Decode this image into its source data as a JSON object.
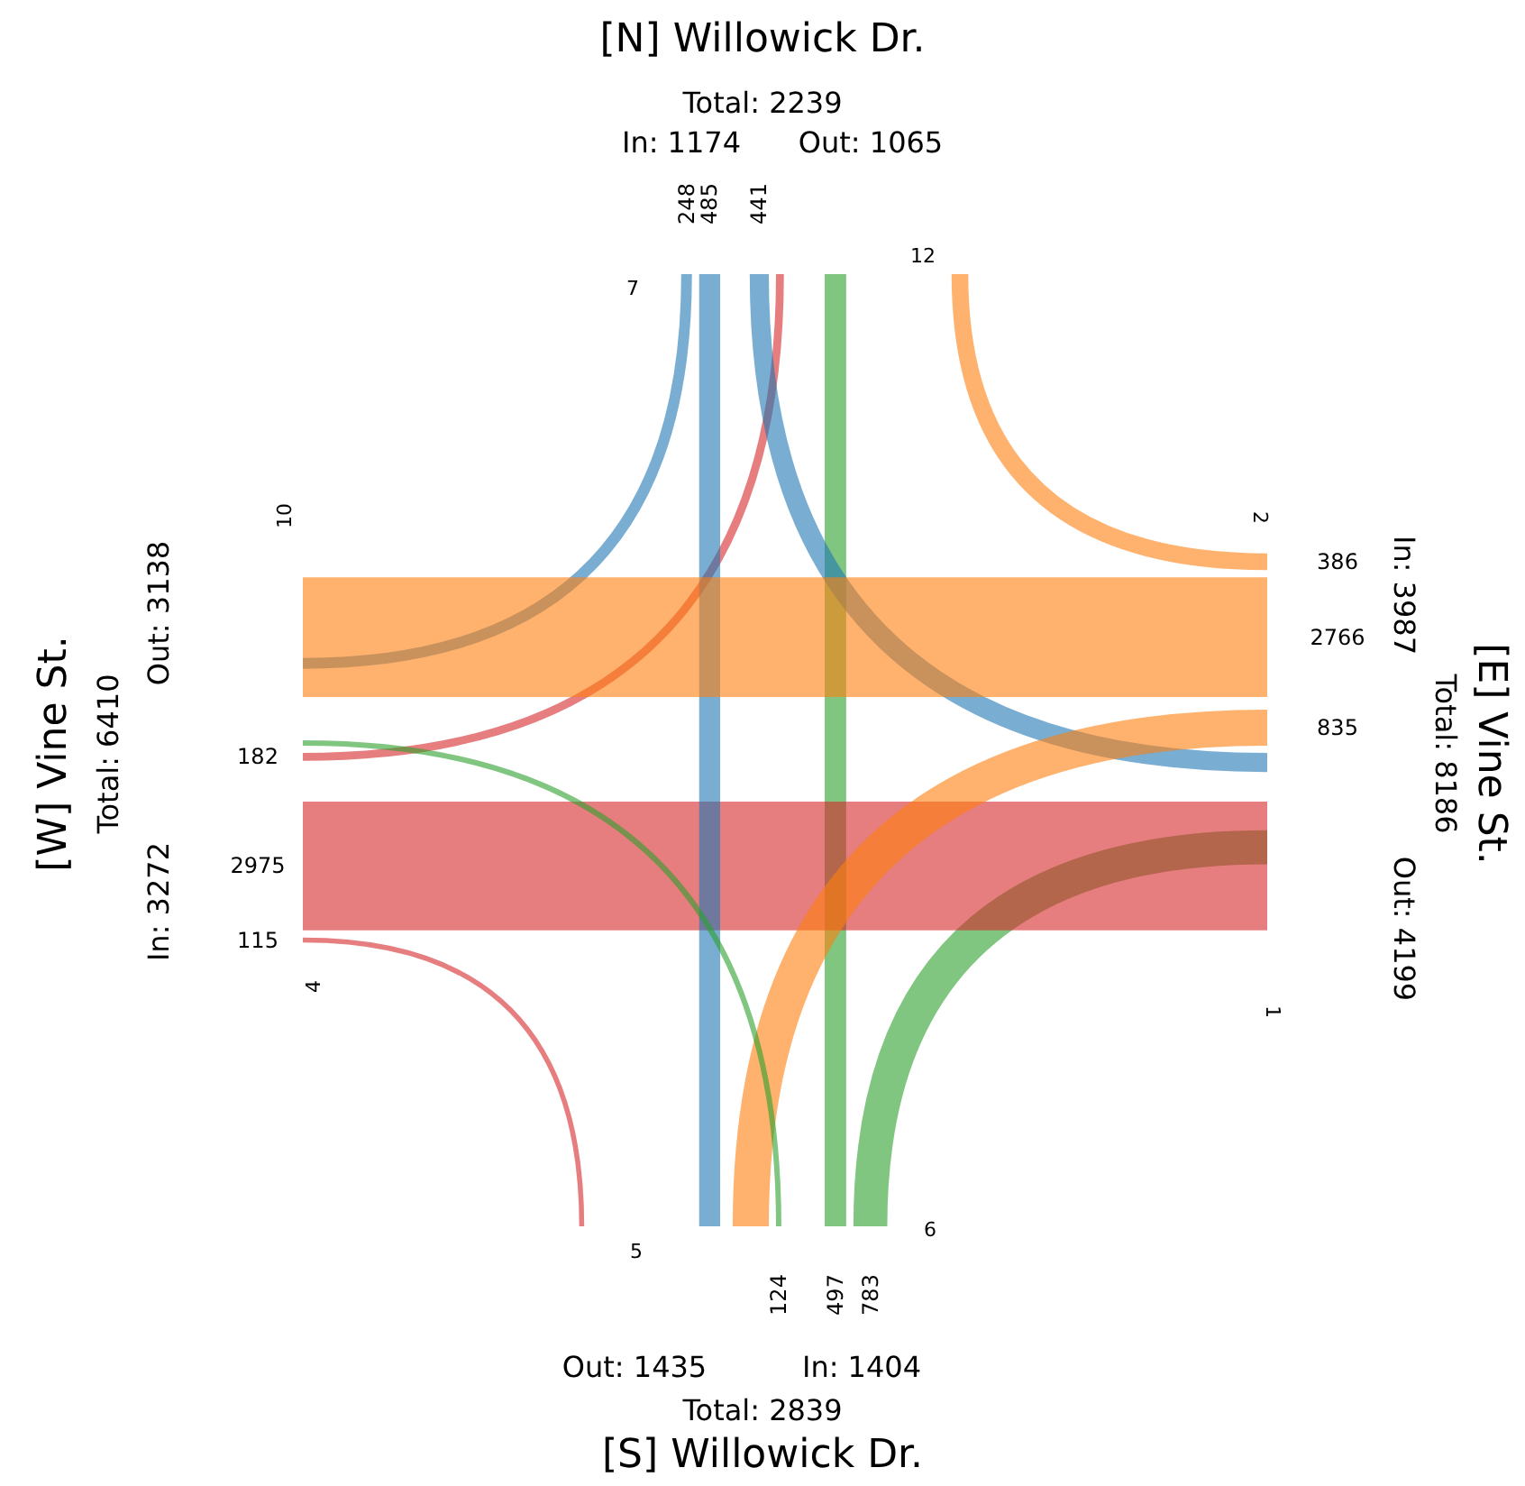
{
  "chart_data": {
    "type": "other",
    "categories": [
      "[N] Willowick Dr.",
      "[E] Vine St.",
      "[S] Willowick Dr.",
      "[W] Vine St."
    ],
    "series": [
      {
        "colors": [
          null,
          "#ff7f0e",
          "#2ca02c",
          "#d62728"
        ],
        "values": [
          null,
          386,
          497,
          182
        ]
      },
      {
        "colors": [
          "#1f77b4",
          null,
          "#2ca02c",
          "#d62728"
        ],
        "values": [
          441,
          null,
          783,
          2975
        ]
      },
      {
        "colors": [
          "#1f77b4",
          "#ff7f0e",
          null,
          "#d62728"
        ],
        "values": [
          485,
          835,
          null,
          115
        ]
      },
      {
        "colors": [
          "#1f77b4",
          "#ff7f0e",
          "#2ca02c",
          null
        ],
        "values": [
          248,
          2766,
          124,
          null
        ]
      }
    ],
    "data_labels": true,
    "annotations": [
      "Total: 2239",
      "In: 1174",
      "Out: 1065",
      "7",
      "12",
      "Total: 8186",
      "In: 3987",
      "Out: 4199",
      "2",
      "1",
      "Total: 2839",
      "In: 1404",
      "Out: 1435",
      "5",
      "6",
      "Total: 6410",
      "In: 3272",
      "Out: 3138",
      "10",
      "4"
    ]
  }
}
